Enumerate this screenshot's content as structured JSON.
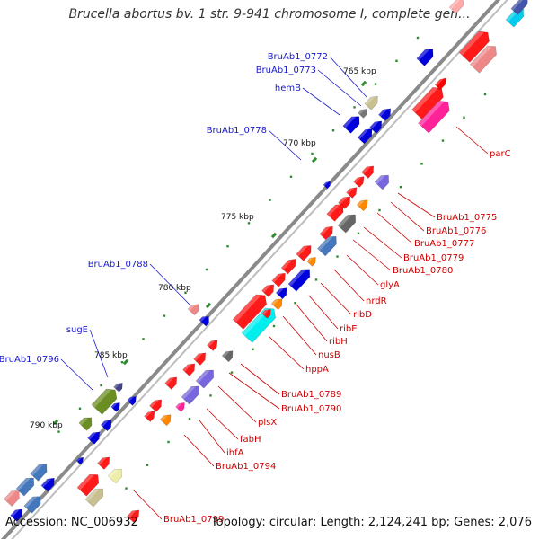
{
  "title": "Brucella abortus bv. 1 str. 9-941 chromosome I, complete gen...",
  "footer": {
    "accession": "Accession: NC_006932",
    "summary": "Topology: circular; Length: 2,124,241 bp; Genes: 2,076"
  },
  "colors": {
    "backbone": "#888888",
    "label_left": "#1a1acc",
    "label_right": "#cc0000",
    "tick": "#2e8b2e"
  },
  "scale_labels": [
    "765 kbp",
    "770 kbp",
    "775 kbp",
    "780 kbp",
    "785 kbp",
    "790 kbp"
  ],
  "labels_left": [
    "BruAb1_0772",
    "BruAb1_0773",
    "hemB",
    "BruAb1_0778",
    "BruAb1_0788",
    "sugE",
    "BruAb1_0796"
  ],
  "labels_right": [
    "parC",
    "BruAb1_0775",
    "BruAb1_0776",
    "BruAb1_0777",
    "BruAb1_0779",
    "BruAb1_0780",
    "glyA",
    "nrdR",
    "ribD",
    "ribE",
    "ribH",
    "nusB",
    "hppA",
    "BruAb1_0789",
    "BruAb1_0790",
    "plsX",
    "fabH",
    "ihfA",
    "BruAb1_0794",
    "BruAb1_0799"
  ]
}
